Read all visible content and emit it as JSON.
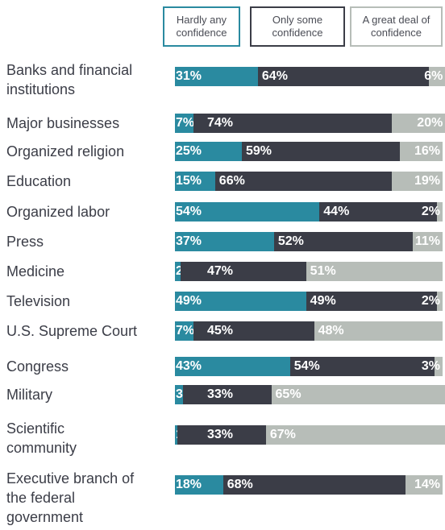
{
  "chart_data": {
    "type": "stacked-bar",
    "series": [
      {
        "name": "Hardly any confidence",
        "color": "#2a8aa0",
        "values": [
          31,
          7,
          25,
          15,
          54,
          37,
          2,
          49,
          7,
          43,
          3,
          1,
          18
        ],
        "value_labels": [
          "31%",
          "7%",
          "25%",
          "15%",
          "54%",
          "37%",
          "2%",
          "49%",
          "7%",
          "43%",
          "3%",
          "1%",
          "18%"
        ]
      },
      {
        "name": "Only some confidence",
        "color": "#3b3d47",
        "values": [
          64,
          74,
          59,
          66,
          44,
          52,
          47,
          49,
          45,
          54,
          33,
          33,
          68
        ],
        "value_labels": [
          "64%",
          "74%",
          "59%",
          "66%",
          "44%",
          "52%",
          "47%",
          "49%",
          "45%",
          "54%",
          "33%",
          "33%",
          "68%"
        ]
      },
      {
        "name": "A great deal of confidence",
        "color": "#b7bdb8",
        "values": [
          6,
          20,
          16,
          19,
          2,
          11,
          51,
          2,
          48,
          3,
          65,
          67,
          14
        ],
        "value_labels": [
          "6%",
          "20%",
          "16%",
          "19%",
          "2%",
          "11%",
          "51%",
          "2%",
          "48%",
          "3%",
          "65%",
          "67%",
          "14%"
        ]
      }
    ],
    "categories": [
      "Banks and financial institutions",
      "Major businesses",
      "Organized religion",
      "Education",
      "Organized labor",
      "Press",
      "Medicine",
      "Television",
      "U.S. Supreme Court",
      "Congress",
      "Military",
      "Scientific community",
      "Executive branch of the federal government"
    ]
  }
}
